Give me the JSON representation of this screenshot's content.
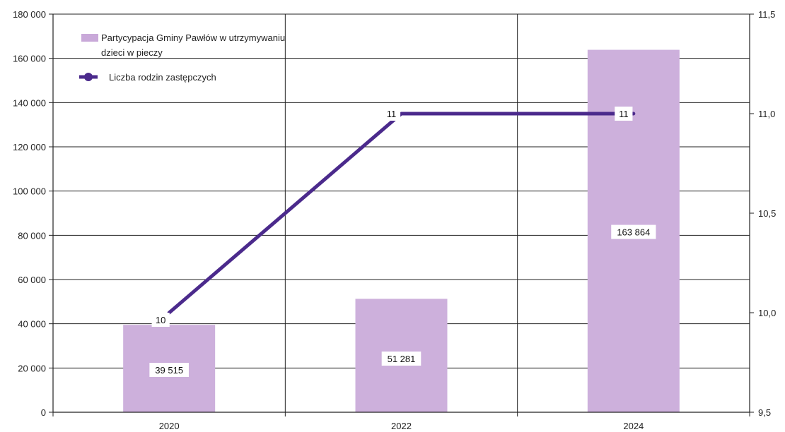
{
  "chart_data": {
    "type": "bar",
    "categories": [
      "2020",
      "2022",
      "2024"
    ],
    "series": [
      {
        "name": "Partycypacja Gminy Pawłów w utrzymywaniu dzieci w pieczy",
        "type": "bar",
        "axis": "left",
        "values": [
          39515,
          51281,
          163864
        ],
        "labels": [
          "39 515",
          "51 281",
          "163 864"
        ]
      },
      {
        "name": "Liczba rodzin zastępczych",
        "type": "line",
        "axis": "right",
        "values": [
          10,
          11,
          11
        ],
        "labels": [
          "10",
          "11",
          "11"
        ]
      }
    ],
    "legend": {
      "bar_line1": "Partycypacja Gminy Pawłów w utrzymywaniu",
      "bar_line2": "dzieci w pieczy",
      "line": "Liczba rodzin zastępczych",
      "position": "top-left"
    },
    "y_left": {
      "ylim": [
        0,
        180000
      ],
      "ticks": [
        0,
        20000,
        40000,
        60000,
        80000,
        100000,
        120000,
        140000,
        160000,
        180000
      ],
      "tick_labels": [
        "0",
        "20 000",
        "40 000",
        "60 000",
        "80 000",
        "100 000",
        "120 000",
        "140 000",
        "160 000",
        "180 000"
      ]
    },
    "y_right": {
      "ylim": [
        9.5,
        11.5
      ],
      "ticks": [
        9.5,
        10.0,
        10.5,
        11.0,
        11.5
      ],
      "tick_labels": [
        "9,5",
        "10,0",
        "10,5",
        "11,0",
        "11,5"
      ]
    },
    "grid": true,
    "colors": {
      "bar": "#cdb0dc",
      "bar_legend": "#c9a9d9",
      "line": "#4b2a8c",
      "grid": "#222222"
    }
  }
}
